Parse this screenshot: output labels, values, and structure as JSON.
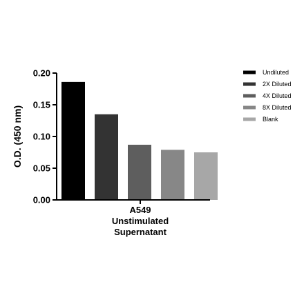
{
  "chart_data": {
    "type": "bar",
    "categories": [
      "A549 Unstimulated Supernatant"
    ],
    "xlabel": [
      "A549",
      "Unstimulated",
      "Supernatant"
    ],
    "ylabel": "O.D. (450 nm)",
    "ylim": [
      0,
      0.2
    ],
    "yticks": [
      "0.00",
      "0.05",
      "0.10",
      "0.15",
      "0.20"
    ],
    "ytick_values": [
      0,
      0.05,
      0.1,
      0.15,
      0.2
    ],
    "grid": false,
    "legend_position": "right",
    "series": [
      {
        "name": "Undiluted",
        "values": [
          0.186
        ],
        "color": "#000000"
      },
      {
        "name": "2X Diluted",
        "values": [
          0.135
        ],
        "color": "#333333"
      },
      {
        "name": "4X Diluted",
        "values": [
          0.087
        ],
        "color": "#5e5e5e"
      },
      {
        "name": "8X Diluted",
        "values": [
          0.079
        ],
        "color": "#878787"
      },
      {
        "name": "Blank",
        "values": [
          0.075
        ],
        "color": "#a7a7a7"
      }
    ]
  }
}
